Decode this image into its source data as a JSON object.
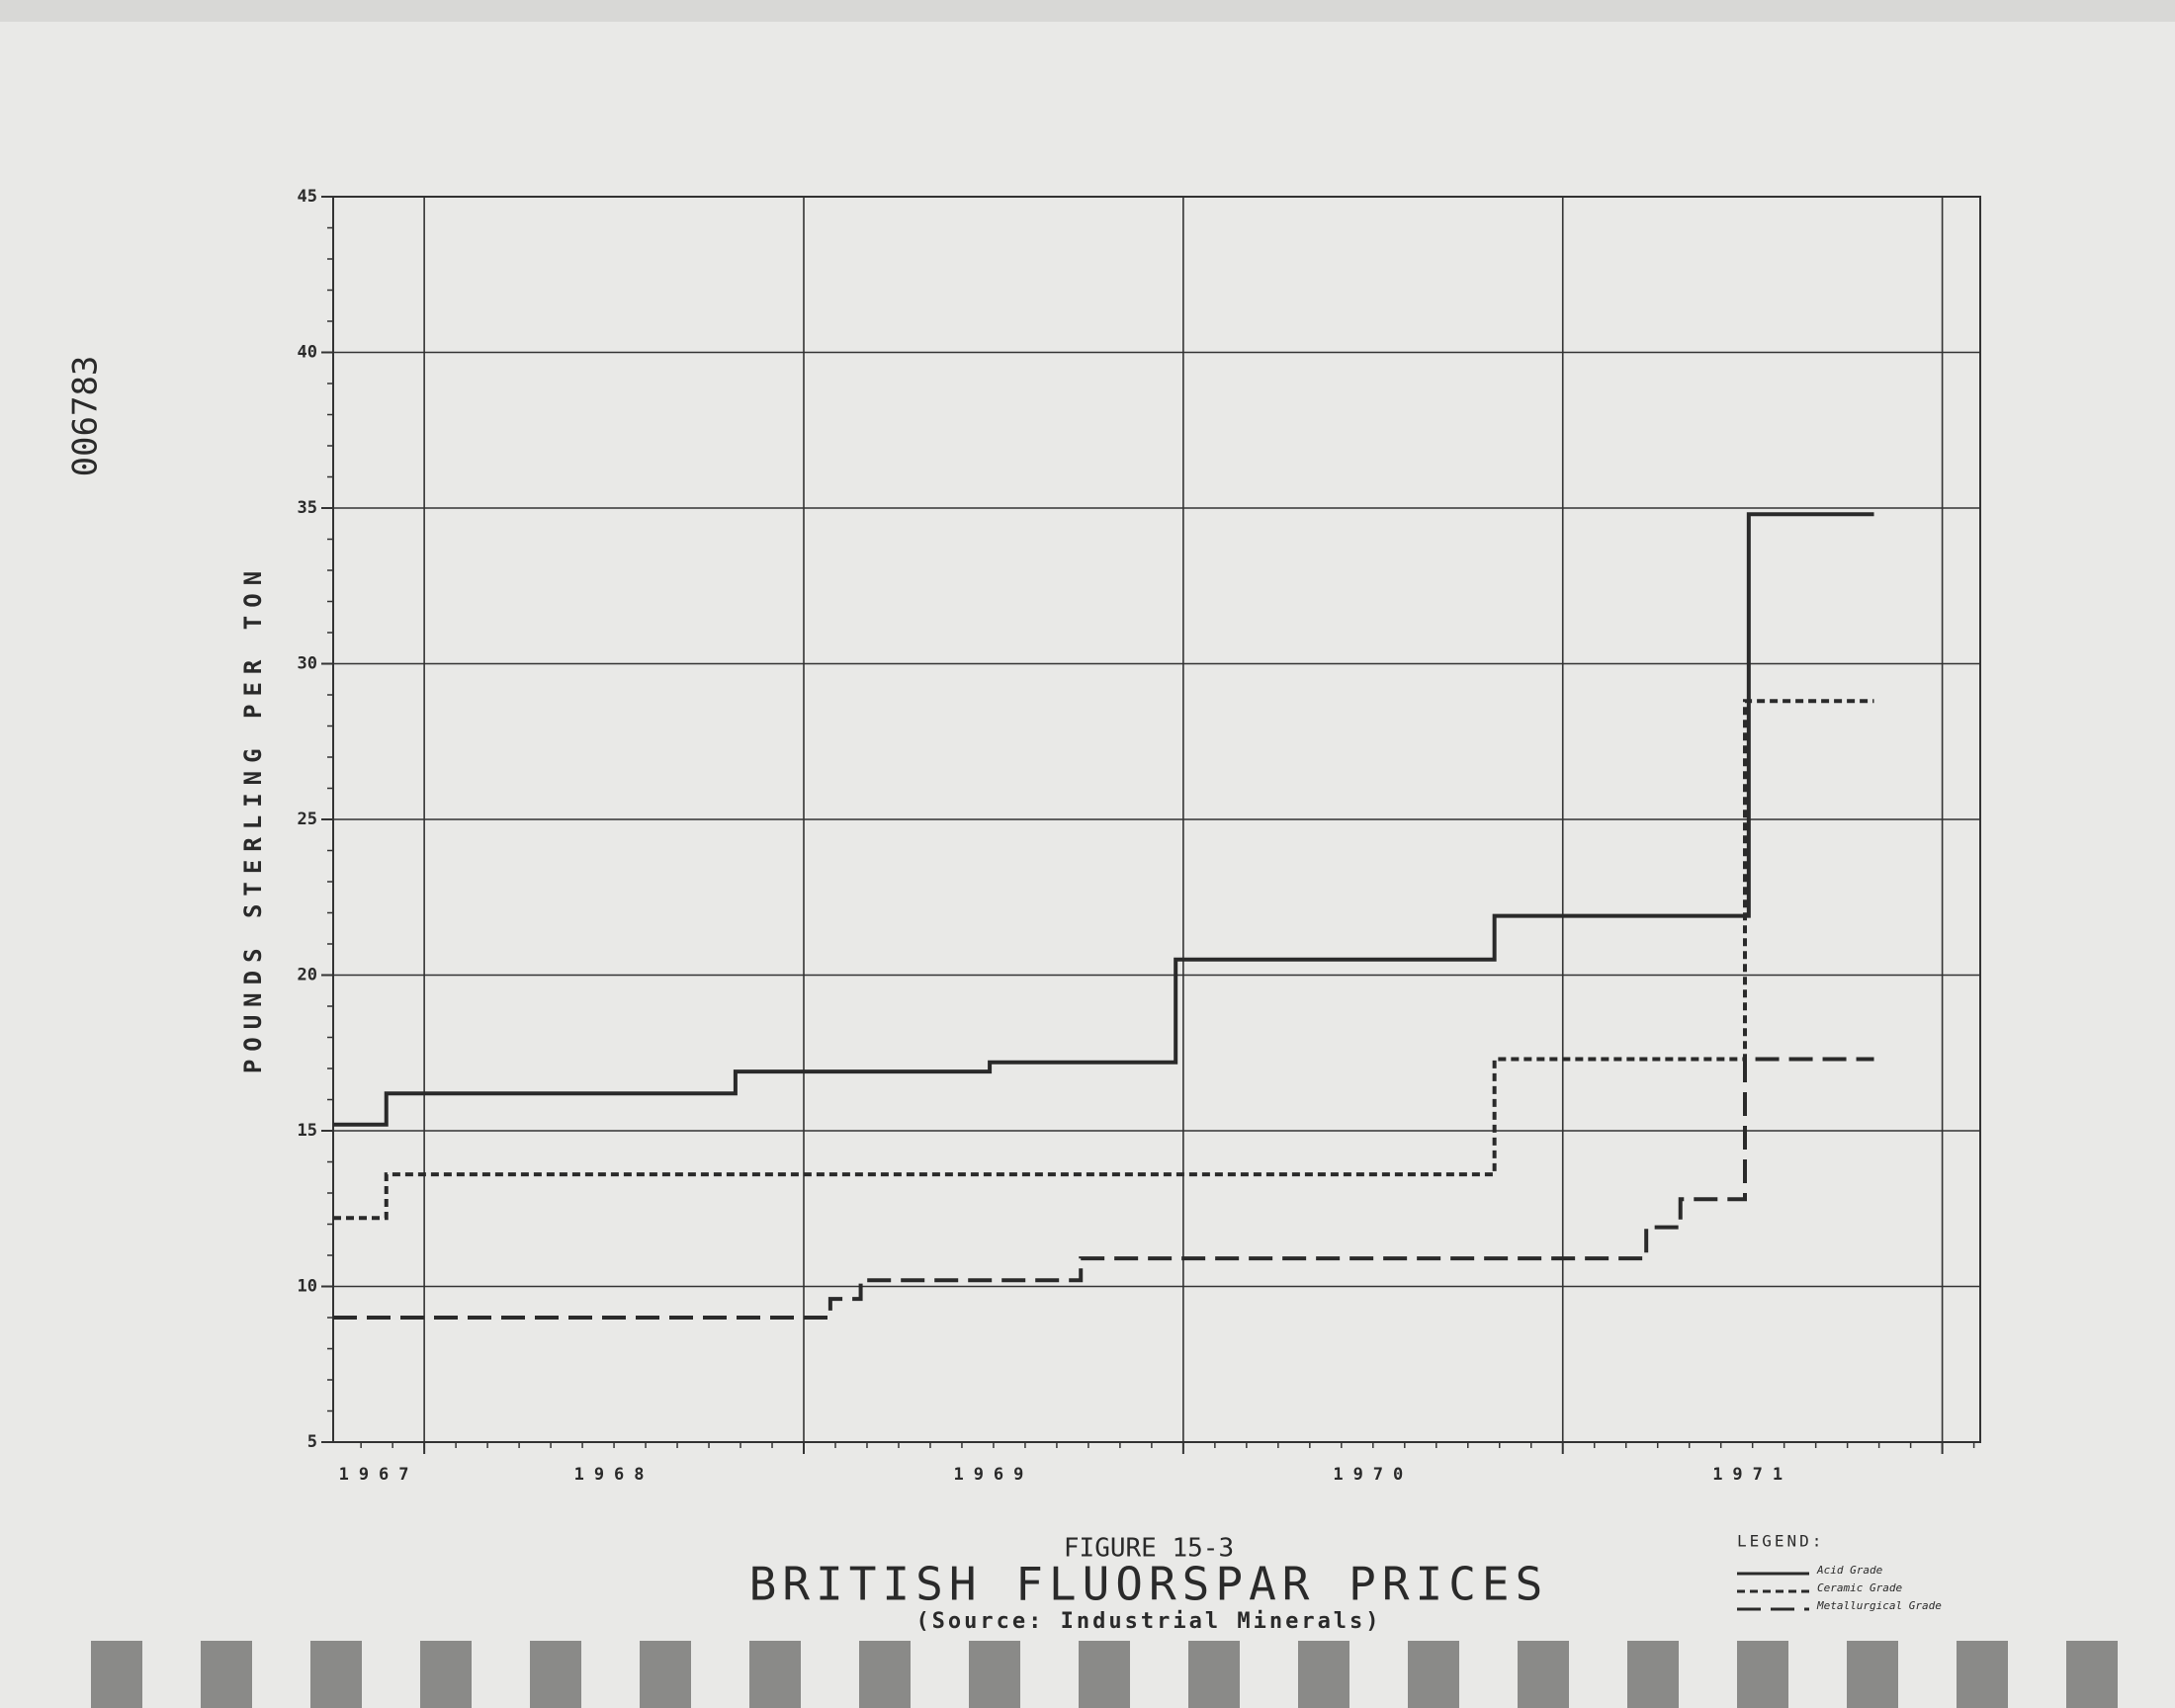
{
  "stamp": "006783",
  "chart_data": {
    "type": "step-line",
    "title": "BRITISH FLUORSPAR PRICES",
    "figure_label": "FIGURE 15-3",
    "subtitle": "(Source: Industrial Minerals)",
    "y_label": "POUNDS STERLING PER TON",
    "legend_title": "LEGEND:",
    "xlim": [
      1967.76,
      1972.1
    ],
    "xgrid": [
      1968,
      1969,
      1970,
      1971,
      1972
    ],
    "xticks": [
      {
        "value": 1967.88,
        "label": "1967"
      },
      {
        "value": 1968.5,
        "label": "1968"
      },
      {
        "value": 1969.5,
        "label": "1969"
      },
      {
        "value": 1970.5,
        "label": "1970"
      },
      {
        "value": 1971.5,
        "label": "1971"
      }
    ],
    "ylim": [
      5,
      45
    ],
    "yticks": [
      5,
      10,
      15,
      20,
      25,
      30,
      35,
      40,
      45
    ],
    "yminor": 1,
    "grid": true,
    "series": [
      {
        "name": "Acid Grade",
        "color": "#2a2a2a",
        "dash": "solid",
        "x": [
          1967.76,
          1967.9,
          1968.82,
          1969.49,
          1969.98,
          1970.82,
          1971.49,
          1971.82
        ],
        "values": [
          15.2,
          16.2,
          16.9,
          17.2,
          20.5,
          21.9,
          34.8,
          34.8
        ]
      },
      {
        "name": "Ceramic Grade",
        "color": "#2a2a2a",
        "dash": "dotted",
        "x": [
          1967.76,
          1967.9,
          1970.82,
          1971.48,
          1971.82
        ],
        "values": [
          12.2,
          13.6,
          17.3,
          28.8,
          28.8
        ]
      },
      {
        "name": "Metallurgical Grade",
        "color": "#2a2a2a",
        "dash": "dashed",
        "x": [
          1967.76,
          1969.07,
          1969.15,
          1969.73,
          1971.22,
          1971.31,
          1971.48,
          1971.82
        ],
        "values": [
          9.0,
          9.6,
          10.2,
          10.9,
          11.9,
          12.8,
          17.3,
          17.3
        ]
      }
    ]
  }
}
